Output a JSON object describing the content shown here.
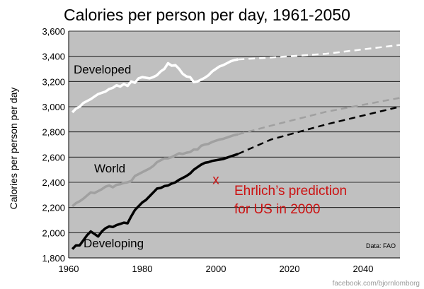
{
  "chart_data": {
    "type": "line",
    "title": "Calories per person per day, 1961-2050",
    "ylabel": "Calories per person per day",
    "xlabel": "",
    "xlim": [
      1960,
      2050
    ],
    "ylim": [
      1800,
      3600
    ],
    "x_ticks": [
      1960,
      1980,
      2000,
      2020,
      2040
    ],
    "y_ticks": [
      "1,800",
      "2,000",
      "2,200",
      "2,400",
      "2,600",
      "2,800",
      "3,000",
      "3,200",
      "3,400",
      "3,600"
    ],
    "y_tick_values": [
      1800,
      2000,
      2200,
      2400,
      2600,
      2800,
      3000,
      3200,
      3400,
      3600
    ],
    "plot_background": "#c0c0c0",
    "series": [
      {
        "name": "Developed",
        "color": "#ffffff",
        "historical": [
          [
            1961,
            2955
          ],
          [
            1962,
            2985
          ],
          [
            1963,
            3000
          ],
          [
            1964,
            3030
          ],
          [
            1965,
            3045
          ],
          [
            1966,
            3060
          ],
          [
            1967,
            3080
          ],
          [
            1968,
            3100
          ],
          [
            1969,
            3110
          ],
          [
            1970,
            3120
          ],
          [
            1971,
            3140
          ],
          [
            1972,
            3150
          ],
          [
            1973,
            3170
          ],
          [
            1974,
            3160
          ],
          [
            1975,
            3180
          ],
          [
            1976,
            3165
          ],
          [
            1977,
            3200
          ],
          [
            1978,
            3190
          ],
          [
            1979,
            3225
          ],
          [
            1980,
            3235
          ],
          [
            1981,
            3230
          ],
          [
            1982,
            3225
          ],
          [
            1983,
            3235
          ],
          [
            1984,
            3250
          ],
          [
            1985,
            3280
          ],
          [
            1986,
            3300
          ],
          [
            1987,
            3345
          ],
          [
            1988,
            3325
          ],
          [
            1989,
            3330
          ],
          [
            1990,
            3300
          ],
          [
            1991,
            3260
          ],
          [
            1992,
            3240
          ],
          [
            1993,
            3235
          ],
          [
            1994,
            3195
          ],
          [
            1995,
            3200
          ],
          [
            1996,
            3215
          ],
          [
            1997,
            3230
          ],
          [
            1998,
            3250
          ],
          [
            1999,
            3280
          ],
          [
            2000,
            3300
          ],
          [
            2001,
            3320
          ],
          [
            2002,
            3330
          ],
          [
            2003,
            3345
          ],
          [
            2004,
            3360
          ],
          [
            2005,
            3370
          ],
          [
            2006,
            3375
          ]
        ],
        "projection": [
          [
            2006,
            3375
          ],
          [
            2015,
            3390
          ],
          [
            2030,
            3420
          ],
          [
            2050,
            3490
          ]
        ]
      },
      {
        "name": "World",
        "color": "#a0a0a0",
        "historical": [
          [
            1961,
            2210
          ],
          [
            1962,
            2235
          ],
          [
            1963,
            2250
          ],
          [
            1964,
            2270
          ],
          [
            1965,
            2295
          ],
          [
            1966,
            2320
          ],
          [
            1967,
            2315
          ],
          [
            1968,
            2330
          ],
          [
            1969,
            2345
          ],
          [
            1970,
            2365
          ],
          [
            1971,
            2375
          ],
          [
            1972,
            2360
          ],
          [
            1973,
            2380
          ],
          [
            1974,
            2385
          ],
          [
            1975,
            2395
          ],
          [
            1976,
            2400
          ],
          [
            1977,
            2410
          ],
          [
            1978,
            2450
          ],
          [
            1979,
            2465
          ],
          [
            1980,
            2480
          ],
          [
            1981,
            2495
          ],
          [
            1982,
            2510
          ],
          [
            1983,
            2530
          ],
          [
            1984,
            2560
          ],
          [
            1985,
            2575
          ],
          [
            1986,
            2590
          ],
          [
            1987,
            2590
          ],
          [
            1988,
            2600
          ],
          [
            1989,
            2615
          ],
          [
            1990,
            2630
          ],
          [
            1991,
            2625
          ],
          [
            1992,
            2635
          ],
          [
            1993,
            2640
          ],
          [
            1994,
            2660
          ],
          [
            1995,
            2660
          ],
          [
            1996,
            2690
          ],
          [
            1997,
            2700
          ],
          [
            1998,
            2705
          ],
          [
            1999,
            2720
          ],
          [
            2000,
            2730
          ],
          [
            2001,
            2740
          ],
          [
            2002,
            2745
          ],
          [
            2003,
            2755
          ],
          [
            2004,
            2765
          ],
          [
            2005,
            2775
          ],
          [
            2006,
            2780
          ]
        ],
        "projection": [
          [
            2006,
            2780
          ],
          [
            2015,
            2850
          ],
          [
            2030,
            2960
          ],
          [
            2050,
            3070
          ]
        ]
      },
      {
        "name": "Developing",
        "color": "#000000",
        "historical": [
          [
            1961,
            1870
          ],
          [
            1962,
            1900
          ],
          [
            1963,
            1900
          ],
          [
            1964,
            1940
          ],
          [
            1965,
            1980
          ],
          [
            1966,
            2010
          ],
          [
            1967,
            1990
          ],
          [
            1968,
            1970
          ],
          [
            1969,
            2010
          ],
          [
            1970,
            2035
          ],
          [
            1971,
            2050
          ],
          [
            1972,
            2045
          ],
          [
            1973,
            2060
          ],
          [
            1974,
            2070
          ],
          [
            1975,
            2080
          ],
          [
            1976,
            2075
          ],
          [
            1977,
            2130
          ],
          [
            1978,
            2180
          ],
          [
            1979,
            2210
          ],
          [
            1980,
            2240
          ],
          [
            1981,
            2260
          ],
          [
            1982,
            2290
          ],
          [
            1983,
            2320
          ],
          [
            1984,
            2350
          ],
          [
            1985,
            2355
          ],
          [
            1986,
            2370
          ],
          [
            1987,
            2375
          ],
          [
            1988,
            2390
          ],
          [
            1989,
            2400
          ],
          [
            1990,
            2420
          ],
          [
            1991,
            2435
          ],
          [
            1992,
            2450
          ],
          [
            1993,
            2470
          ],
          [
            1994,
            2500
          ],
          [
            1995,
            2520
          ],
          [
            1996,
            2540
          ],
          [
            1997,
            2555
          ],
          [
            1998,
            2560
          ],
          [
            1999,
            2570
          ],
          [
            2000,
            2575
          ],
          [
            2001,
            2580
          ],
          [
            2002,
            2585
          ],
          [
            2003,
            2595
          ],
          [
            2004,
            2605
          ],
          [
            2005,
            2615
          ],
          [
            2006,
            2625
          ]
        ],
        "projection": [
          [
            2006,
            2625
          ],
          [
            2015,
            2740
          ],
          [
            2030,
            2860
          ],
          [
            2050,
            3000
          ]
        ]
      }
    ],
    "series_labels": {
      "developed": "Developed",
      "world": "World",
      "developing": "Developing"
    },
    "annotation": {
      "marker": "x",
      "point": [
        2000,
        2420
      ],
      "line1": "Ehrlich’s prediction",
      "line2": "for US in 2000",
      "color": "#cc1111"
    },
    "source_note": "Data: FAO"
  },
  "credit": "facebook.com/bjornlomborg"
}
